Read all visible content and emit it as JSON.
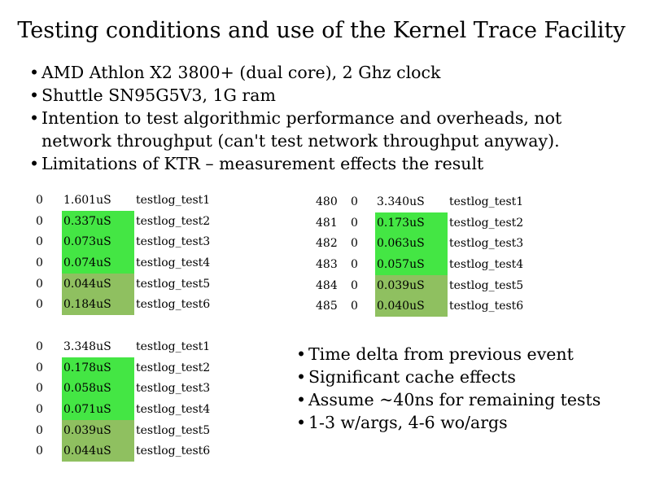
{
  "title": "Testing conditions and use of the Kernel Trace Facility",
  "bullets_top": [
    "AMD Athlon X2 3800+ (dual core), 2 Ghz clock",
    "Shuttle SN95G5V3, 1G ram",
    "Intention to test algorithmic performance and overheads, not",
    "network throughput (can't test network throughput anyway).",
    "Limitations of KTR – measurement effects the result"
  ],
  "tables": [
    {
      "rows": [
        {
          "cpu": "0",
          "time": "1.601uS",
          "name": "testlog_test1",
          "color": "#ffffff"
        },
        {
          "cpu": "0",
          "time": "0.337uS",
          "name": "testlog_test2",
          "color": "#44e644"
        },
        {
          "cpu": "0",
          "time": "0.073uS",
          "name": "testlog_test3",
          "color": "#44e644"
        },
        {
          "cpu": "0",
          "time": "0.074uS",
          "name": "testlog_test4",
          "color": "#44e644"
        },
        {
          "cpu": "0",
          "time": "0.044uS",
          "name": "testlog_test5",
          "color": "#8fc060"
        },
        {
          "cpu": "0",
          "time": "0.184uS",
          "name": "testlog_test6",
          "color": "#8fc060"
        }
      ]
    },
    {
      "rows": [
        {
          "cpu": "0",
          "time": "3.348uS",
          "name": "testlog_test1",
          "color": "#ffffff"
        },
        {
          "cpu": "0",
          "time": "0.178uS",
          "name": "testlog_test2",
          "color": "#44e644"
        },
        {
          "cpu": "0",
          "time": "0.058uS",
          "name": "testlog_test3",
          "color": "#44e644"
        },
        {
          "cpu": "0",
          "time": "0.071uS",
          "name": "testlog_test4",
          "color": "#44e644"
        },
        {
          "cpu": "0",
          "time": "0.039uS",
          "name": "testlog_test5",
          "color": "#8fc060"
        },
        {
          "cpu": "0",
          "time": "0.044uS",
          "name": "testlog_test6",
          "color": "#8fc060"
        }
      ]
    },
    {
      "rows": [
        {
          "idx": "480",
          "cpu": "0",
          "time": "3.340uS",
          "name": "testlog_test1",
          "color": "#ffffff"
        },
        {
          "idx": "481",
          "cpu": "0",
          "time": "0.173uS",
          "name": "testlog_test2",
          "color": "#44e644"
        },
        {
          "idx": "482",
          "cpu": "0",
          "time": "0.063uS",
          "name": "testlog_test3",
          "color": "#44e644"
        },
        {
          "idx": "483",
          "cpu": "0",
          "time": "0.057uS",
          "name": "testlog_test4",
          "color": "#44e644"
        },
        {
          "idx": "484",
          "cpu": "0",
          "time": "0.039uS",
          "name": "testlog_test5",
          "color": "#8fc060"
        },
        {
          "idx": "485",
          "cpu": "0",
          "time": "0.040uS",
          "name": "testlog_test6",
          "color": "#8fc060"
        }
      ]
    }
  ],
  "bullets_bottom": [
    "Time delta from previous event",
    "Significant cache effects",
    "Assume ~40ns for remaining tests",
    "1-3 w/args, 4-6 wo/args"
  ],
  "colors": {
    "with_args_highlight": "#44e644",
    "without_args_highlight": "#8fc060"
  }
}
